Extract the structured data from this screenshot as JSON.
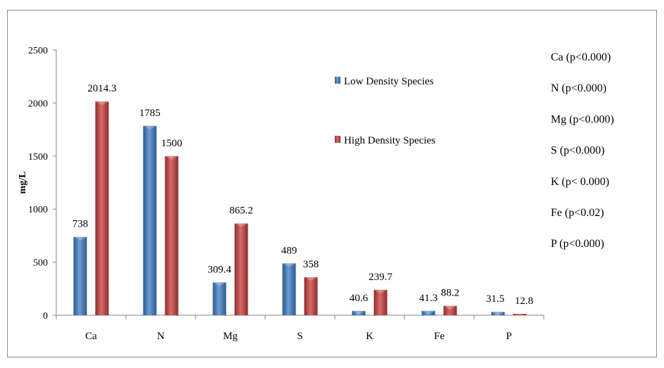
{
  "chart_data": {
    "type": "bar",
    "title": "",
    "xlabel": "",
    "ylabel": "mg/L",
    "ylim": [
      0,
      2500
    ],
    "yticks": [
      0,
      500,
      1000,
      1500,
      2000,
      2500
    ],
    "categories": [
      "Ca",
      "N",
      "Mg",
      "S",
      "K",
      "Fe",
      "P"
    ],
    "series": [
      {
        "name": "Low Density Species",
        "color": "#4a7ebb",
        "values": [
          738,
          1785,
          309.4,
          489,
          40.6,
          41.3,
          31.5
        ],
        "labels": [
          "738",
          "1785",
          "309.4",
          "489",
          "40.6",
          "41.3",
          "31.5"
        ]
      },
      {
        "name": "High Density Species",
        "color": "#be4b48",
        "values": [
          2014.3,
          1500,
          865.2,
          358,
          239.7,
          88.2,
          12.8
        ],
        "labels": [
          "2014.3",
          "1500",
          "865.2",
          "358",
          "239.7",
          "88.2",
          "12.8"
        ]
      }
    ],
    "grid": false,
    "legend_position": "top-right",
    "annotations": [
      "Ca (p<0.000)",
      "N (p<0.000)",
      "Mg (p<0.000)",
      "S (p<0.000)",
      "K (p< 0.000)",
      "Fe (p<0.02)",
      "P (p<0.000)"
    ]
  }
}
